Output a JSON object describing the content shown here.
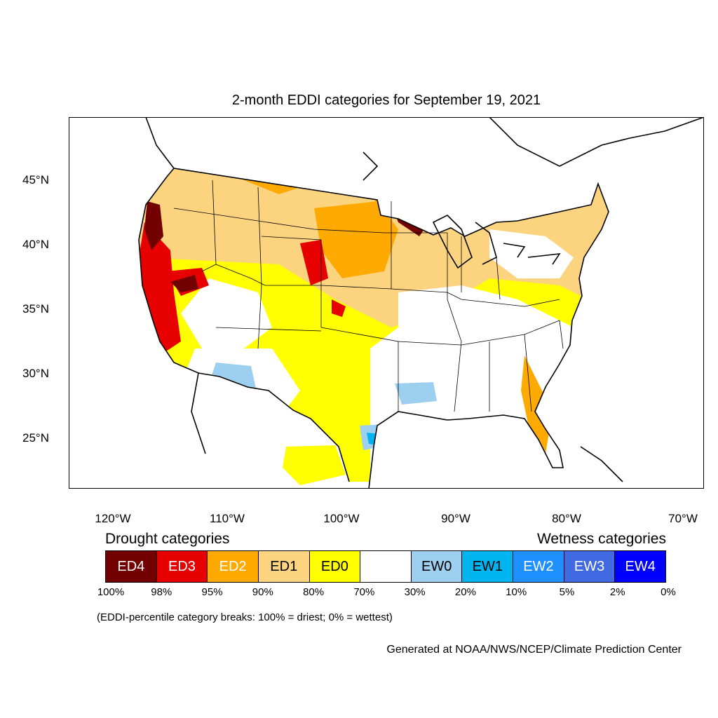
{
  "title": "2-month EDDI categories for September 19, 2021",
  "lat_labels": [
    "45°N",
    "40°N",
    "35°N",
    "30°N",
    "25°N"
  ],
  "lon_labels": [
    "120°W",
    "110°W",
    "100°W",
    "90°W",
    "80°W",
    "70°W"
  ],
  "legend": {
    "drought_heading": "Drought categories",
    "wetness_heading": "Wetness categories",
    "categories": [
      {
        "label": "ED4",
        "color": "#730000",
        "text_color": "#ffffff"
      },
      {
        "label": "ED3",
        "color": "#e60000",
        "text_color": "#ffffff"
      },
      {
        "label": "ED2",
        "color": "#ffaa00",
        "text_color": "#ffffff"
      },
      {
        "label": "ED1",
        "color": "#fcd37f",
        "text_color": "#000000"
      },
      {
        "label": "ED0",
        "color": "#ffff00",
        "text_color": "#000000"
      },
      {
        "label": "",
        "color": "#ffffff",
        "text_color": "#000000"
      },
      {
        "label": "EW0",
        "color": "#9ccff0",
        "text_color": "#000000"
      },
      {
        "label": "EW1",
        "color": "#00b4ef",
        "text_color": "#000000"
      },
      {
        "label": "EW2",
        "color": "#1e90ff",
        "text_color": "#ffffff"
      },
      {
        "label": "EW3",
        "color": "#4169e1",
        "text_color": "#ffffff"
      },
      {
        "label": "EW4",
        "color": "#0000ff",
        "text_color": "#ffffff"
      }
    ],
    "breaks": [
      "100%",
      "98%",
      "95%",
      "90%",
      "80%",
      "70%",
      "30%",
      "20%",
      "10%",
      "5%",
      "2%",
      "0%"
    ]
  },
  "note": "(EDDI-percentile category breaks: 100% = driest; 0% = wettest)",
  "credit": "Generated at NOAA/NWS/NCEP/Climate Prediction Center"
}
